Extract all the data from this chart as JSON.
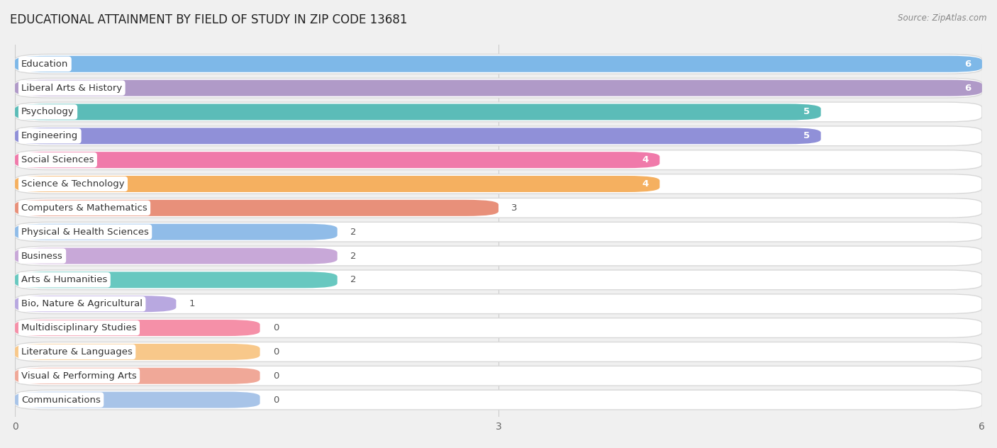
{
  "title": "EDUCATIONAL ATTAINMENT BY FIELD OF STUDY IN ZIP CODE 13681",
  "source": "Source: ZipAtlas.com",
  "categories": [
    "Education",
    "Liberal Arts & History",
    "Psychology",
    "Engineering",
    "Social Sciences",
    "Science & Technology",
    "Computers & Mathematics",
    "Physical & Health Sciences",
    "Business",
    "Arts & Humanities",
    "Bio, Nature & Agricultural",
    "Multidisciplinary Studies",
    "Literature & Languages",
    "Visual & Performing Arts",
    "Communications"
  ],
  "values": [
    6,
    6,
    5,
    5,
    4,
    4,
    3,
    2,
    2,
    2,
    1,
    0,
    0,
    0,
    0
  ],
  "colors": [
    "#7eb8e8",
    "#b09ac8",
    "#5bbcb8",
    "#9090d8",
    "#f07aaa",
    "#f5b060",
    "#e8907a",
    "#90bce8",
    "#c8a8d8",
    "#68c8c0",
    "#b8a8e0",
    "#f590a8",
    "#f8c88a",
    "#f0a898",
    "#a8c4e8"
  ],
  "xlim": [
    0,
    6
  ],
  "xticks": [
    0,
    3,
    6
  ],
  "background_color": "#f0f0f0",
  "bar_bg_color": "#ffffff",
  "bar_bg_border": "#d8d8d8",
  "title_fontsize": 12,
  "label_fontsize": 9.5,
  "value_fontsize": 9.5
}
